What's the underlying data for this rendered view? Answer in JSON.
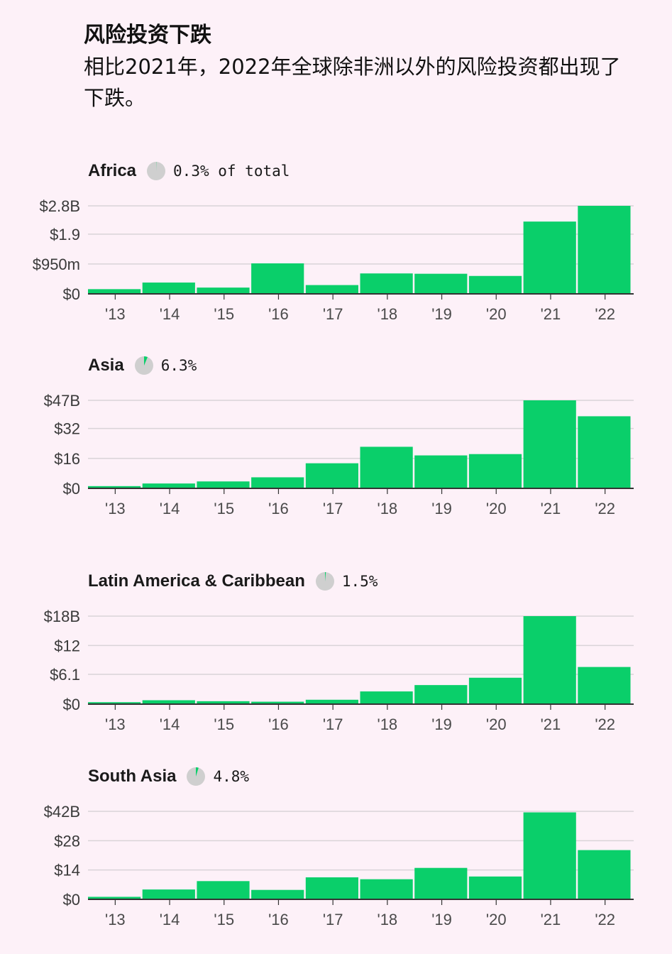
{
  "title": "风险投资下跌",
  "subtitle": "相比2021年，2022年全球除非洲以外的风险投资都出现了下跌。",
  "colors": {
    "bar": "#0acf6a",
    "background": "#fdf1f8",
    "grid": "#d9d4d8",
    "axis": "#333333",
    "pie_base": "#cfcfcf",
    "pie_slice": "#0acf6a"
  },
  "chart_data": [
    {
      "type": "bar",
      "region": "Africa",
      "share_label": "0.3% of total",
      "share_fraction": 0.003,
      "categories": [
        "'13",
        "'14",
        "'15",
        "'16",
        "'17",
        "'18",
        "'19",
        "'20",
        "'21",
        "'22"
      ],
      "values": [
        0.15,
        0.36,
        0.2,
        0.97,
        0.28,
        0.65,
        0.64,
        0.57,
        2.3,
        2.8
      ],
      "unit": "$B",
      "ylim": [
        0,
        2.8
      ],
      "yticks": [
        0,
        0.95,
        1.9,
        2.8
      ],
      "ytick_labels": [
        "$0",
        "$950m",
        "$1.9",
        "$2.8B"
      ],
      "grid": true
    },
    {
      "type": "bar",
      "region": "Asia",
      "share_label": "6.3%",
      "share_fraction": 0.063,
      "categories": [
        "'13",
        "'14",
        "'15",
        "'16",
        "'17",
        "'18",
        "'19",
        "'20",
        "'21",
        "'22"
      ],
      "values": [
        1.2,
        2.6,
        3.7,
        5.9,
        13.4,
        22.2,
        17.6,
        18.3,
        47,
        38.5
      ],
      "unit": "$B",
      "ylim": [
        0,
        47
      ],
      "yticks": [
        0,
        16,
        32,
        47
      ],
      "ytick_labels": [
        "$0",
        "$16",
        "$32",
        "$47B"
      ],
      "grid": true
    },
    {
      "type": "bar",
      "region": "Latin America & Caribbean",
      "share_label": "1.5%",
      "share_fraction": 0.015,
      "categories": [
        "'13",
        "'14",
        "'15",
        "'16",
        "'17",
        "'18",
        "'19",
        "'20",
        "'21",
        "'22"
      ],
      "values": [
        0.4,
        0.8,
        0.6,
        0.5,
        0.9,
        2.6,
        3.9,
        5.4,
        18,
        7.6
      ],
      "unit": "$B",
      "ylim": [
        0,
        18
      ],
      "yticks": [
        0,
        6.1,
        12,
        18
      ],
      "ytick_labels": [
        "$0",
        "$6.1",
        "$12",
        "$18B"
      ],
      "grid": true
    },
    {
      "type": "bar",
      "region": "South Asia",
      "share_label": "4.8%",
      "share_fraction": 0.048,
      "categories": [
        "'13",
        "'14",
        "'15",
        "'16",
        "'17",
        "'18",
        "'19",
        "'20",
        "'21",
        "'22"
      ],
      "values": [
        1.2,
        4.7,
        8.7,
        4.5,
        10.5,
        9.6,
        15,
        10.9,
        41.5,
        23.5
      ],
      "unit": "$B",
      "ylim": [
        0,
        42
      ],
      "yticks": [
        0,
        14,
        28,
        42
      ],
      "ytick_labels": [
        "$0",
        "$14",
        "$28",
        "$42B"
      ],
      "grid": true
    }
  ]
}
